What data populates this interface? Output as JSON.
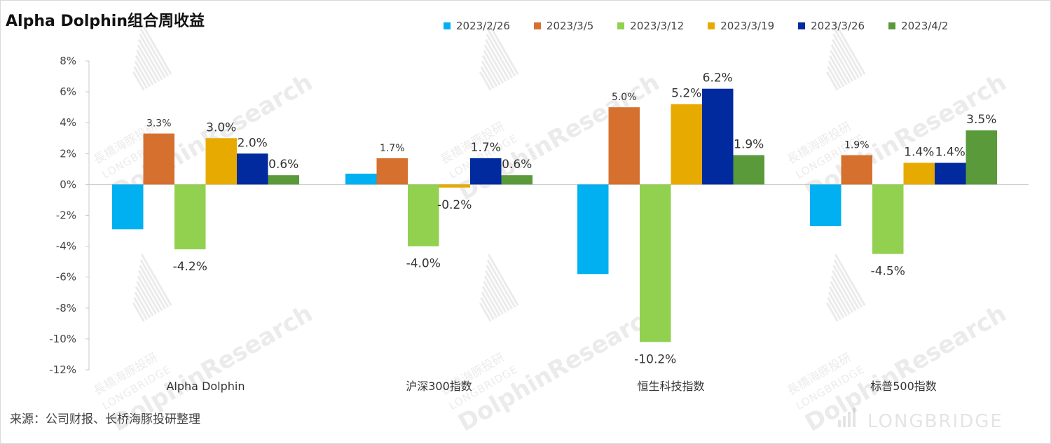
{
  "title": "Alpha Dolphin组合周收益",
  "source": "来源：公司财报、长桥海豚投研整理",
  "watermark": {
    "brand_text": "DolphinResearch",
    "cn_text": "長橋海豚投研",
    "en_text": "LONGBRIDGE",
    "corner_logo_text": "LONGBRIDGE"
  },
  "chart_data": {
    "type": "bar",
    "title": "Alpha Dolphin组合周收益",
    "xlabel": "",
    "ylabel": "",
    "ylim": [
      -12,
      8
    ],
    "y_ticks": [
      8,
      6,
      4,
      2,
      0,
      -2,
      -4,
      -6,
      -8,
      -10,
      -12
    ],
    "y_tick_labels": [
      "8%",
      "6%",
      "4%",
      "2%",
      "0%",
      "-2%",
      "-4%",
      "-6%",
      "-8%",
      "-10%",
      "-12%"
    ],
    "grid": false,
    "legend_position": "top-right",
    "categories": [
      "Alpha Dolphin",
      "沪深300指数",
      "恒生科技指数",
      "标普500指数"
    ],
    "series": [
      {
        "name": "2023/2/26",
        "color": "#00b0f0",
        "values": [
          -2.9,
          0.7,
          -5.8,
          -2.7
        ],
        "labels": [
          "",
          "",
          "",
          ""
        ]
      },
      {
        "name": "2023/3/5",
        "color": "#d6702f",
        "values": [
          3.3,
          1.7,
          5.0,
          1.9
        ],
        "labels": [
          "3.3%",
          "1.7%",
          "5.0%",
          "1.9%"
        ]
      },
      {
        "name": "2023/3/12",
        "color": "#92d050",
        "values": [
          -4.2,
          -4.0,
          -10.2,
          -4.5
        ],
        "labels": [
          "-4.2%",
          "-4.0%",
          "-10.2%",
          "-4.5%"
        ]
      },
      {
        "name": "2023/3/19",
        "color": "#e7aa00",
        "values": [
          3.0,
          -0.2,
          5.2,
          1.4
        ],
        "labels": [
          "3.0%",
          "-0.2%",
          "5.2%",
          "1.4%"
        ]
      },
      {
        "name": "2023/3/26",
        "color": "#002a9e",
        "values": [
          2.0,
          1.7,
          6.2,
          1.4
        ],
        "labels": [
          "2.0%",
          "1.7%",
          "6.2%",
          "1.4%"
        ]
      },
      {
        "name": "2023/4/2",
        "color": "#5a9a3b",
        "values": [
          0.6,
          0.6,
          1.9,
          3.5
        ],
        "labels": [
          "0.6%",
          "0.6%",
          "1.9%",
          "3.5%"
        ]
      }
    ]
  }
}
